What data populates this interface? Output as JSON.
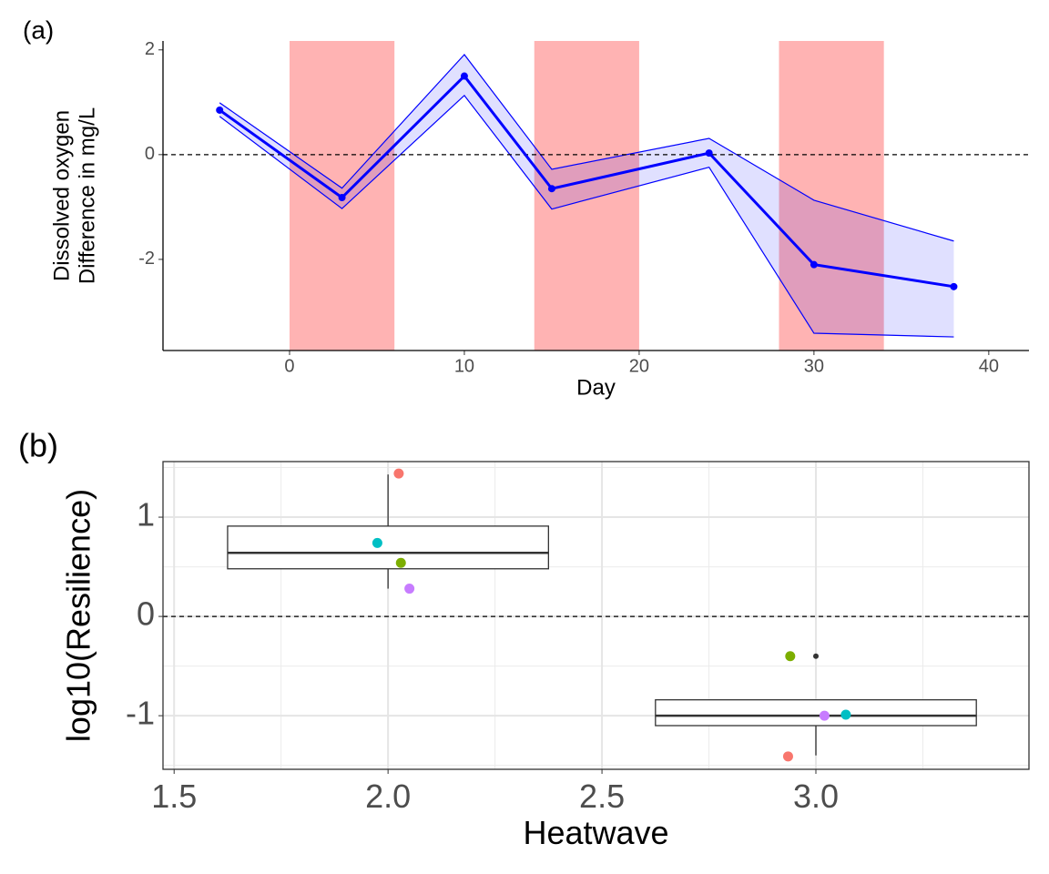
{
  "chart_data": [
    {
      "type": "line",
      "panel_label": "(a)",
      "xlabel": "Day",
      "ylabel": [
        "Dissolved oxygen",
        "Difference in mg/L"
      ],
      "x": [
        -4,
        3,
        10,
        15,
        24,
        30,
        38
      ],
      "values": [
        0.85,
        -0.82,
        1.5,
        -0.65,
        0.03,
        -2.1,
        -2.52
      ],
      "upper": [
        0.99,
        -0.64,
        1.91,
        -0.28,
        0.31,
        -0.87,
        -1.65
      ],
      "lower": [
        0.73,
        -1.03,
        1.13,
        -1.04,
        -0.24,
        -3.41,
        -3.48
      ],
      "shade": [
        [
          0,
          6
        ],
        [
          14,
          20
        ],
        [
          28,
          34
        ]
      ],
      "color": "#0000ff",
      "ribbon_color": "#0000ff",
      "shade_color": "#ffb3b3",
      "hline": 0,
      "xlim": [
        -7.24,
        42.3
      ],
      "ylim": [
        -3.74,
        2.17
      ],
      "xticks": [
        0,
        10,
        20,
        30,
        40
      ],
      "yticks": [
        -2,
        0,
        2
      ]
    },
    {
      "type": "box",
      "panel_label": "(b)",
      "xlabel": "Heatwave",
      "ylabel": "log10(Resilience)",
      "boxes": [
        {
          "x": 2,
          "whislo": 0.28,
          "q1": 0.48,
          "med": 0.64,
          "q3": 0.91,
          "whishi": 1.43,
          "fliers": []
        },
        {
          "x": 3,
          "whislo": -1.4,
          "q1": -1.1,
          "med": -1,
          "q3": -0.84,
          "fliers": [
            -0.4
          ]
        }
      ],
      "points": {
        "x": [
          2.025,
          1.975,
          2.03,
          2.05,
          2.94,
          3.02,
          3.07,
          2.935
        ],
        "y": [
          1.44,
          0.74,
          0.54,
          0.28,
          -0.4,
          -1,
          -0.99,
          -1.41
        ],
        "colors": [
          "#F8766D",
          "#00BFC4",
          "#7CAE00",
          "#C77CFF",
          "#7CAE00",
          "#C77CFF",
          "#00BFC4",
          "#F8766D"
        ]
      },
      "hline": 0,
      "grid": true,
      "xlim": [
        1.474,
        3.498
      ],
      "ylim": [
        -1.54,
        1.56
      ],
      "xticks": [
        {
          "value": 1.5,
          "label": "1.5"
        },
        {
          "value": 2,
          "label": "2.0"
        },
        {
          "value": 2.5,
          "label": "2.5"
        },
        {
          "value": 3,
          "label": "3.0"
        }
      ],
      "yticks": [
        -1,
        0,
        1
      ],
      "x_minor_grid": [
        1.75,
        2.25,
        2.75,
        3.25
      ],
      "y_minor_grid": [
        -1.5,
        -0.5,
        0.5,
        1.5
      ]
    }
  ]
}
